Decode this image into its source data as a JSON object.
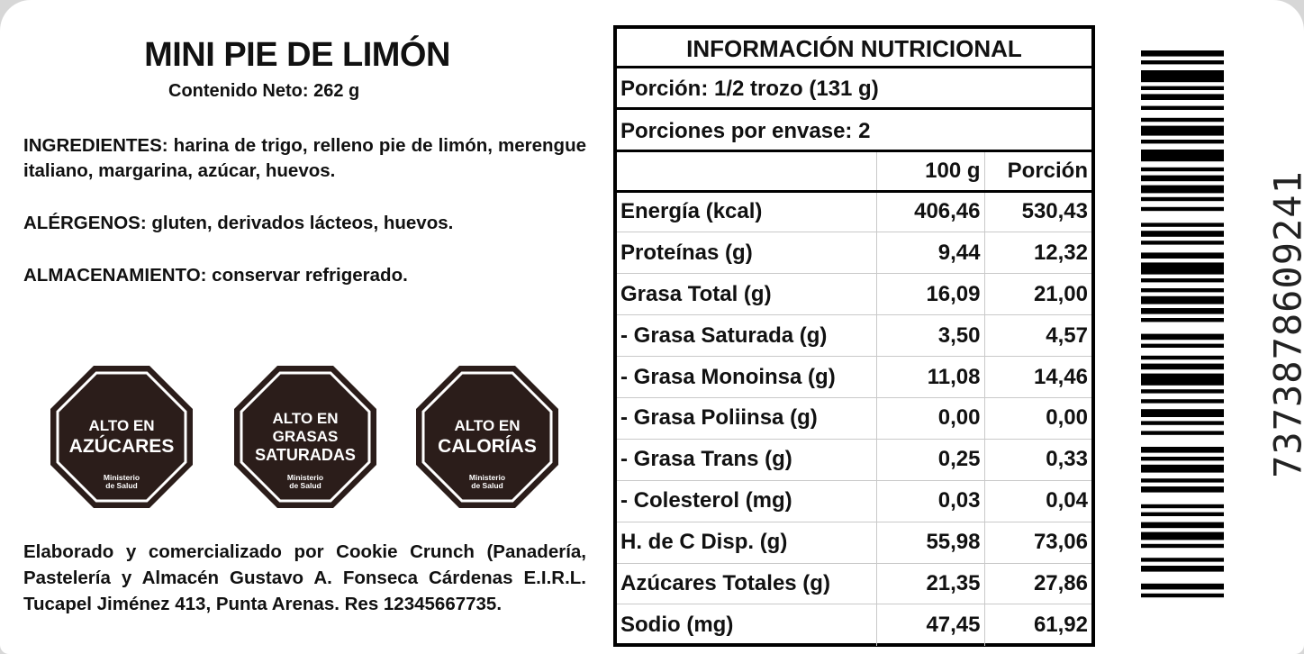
{
  "product": {
    "title": "MINI PIE DE LIMÓN",
    "net_content": "Contenido Neto: 262 g"
  },
  "ingredients": {
    "label": "INGREDIENTES:",
    "text": " harina de trigo, relleno pie de limón, merengue italiano, margarina, azúcar, huevos."
  },
  "allergens": {
    "label": "ALÉRGENOS:",
    "text": " gluten, derivados lácteos, huevos."
  },
  "storage": {
    "label": "ALMACENAMIENTO:",
    "text": " conservar refrigerado."
  },
  "seals": [
    {
      "line1": "ALTO EN",
      "line2": "AZÚCARES",
      "line3": "",
      "ministry1": "Ministerio",
      "ministry2": "de Salud"
    },
    {
      "line1": "ALTO EN",
      "line2": "GRASAS",
      "line3": "SATURADAS",
      "ministry1": "Ministerio",
      "ministry2": "de Salud"
    },
    {
      "line1": "ALTO EN",
      "line2": "CALORÍAS",
      "line3": "",
      "ministry1": "Ministerio",
      "ministry2": "de Salud"
    }
  ],
  "seal_colors": {
    "fill": "#2b1d1a",
    "border": "#ffffff"
  },
  "manufacturer": "Elaborado y comercializado por Cookie Crunch (Panadería, Pastelería y Almacén Gustavo A. Fonseca Cárdenas E.I.R.L. Tucapel Jiménez 413, Punta Arenas. Res 12345667735.",
  "nutrition": {
    "heading": "INFORMACIÓN NUTRICIONAL",
    "serving": "Porción: 1/2 trozo (131 g)",
    "servings_per_pack": "Porciones por envase: 2",
    "col_per100": "100 g",
    "col_portion": "Porción",
    "rows": [
      {
        "name": "Energía (kcal)",
        "per100": "406,46",
        "portion": "530,43"
      },
      {
        "name": "Proteínas (g)",
        "per100": "9,44",
        "portion": "12,32"
      },
      {
        "name": "Grasa Total (g)",
        "per100": "16,09",
        "portion": "21,00"
      },
      {
        "name": "- Grasa Saturada (g)",
        "per100": "3,50",
        "portion": "4,57"
      },
      {
        "name": "- Grasa Monoinsa (g)",
        "per100": "11,08",
        "portion": "14,46"
      },
      {
        "name": "- Grasa Poliinsa (g)",
        "per100": "0,00",
        "portion": "0,00"
      },
      {
        "name": "- Grasa Trans (g)",
        "per100": "0,25",
        "portion": "0,33"
      },
      {
        "name": "- Colesterol (mg)",
        "per100": "0,03",
        "portion": "0,04"
      },
      {
        "name": "H. de C Disp. (g)",
        "per100": "55,98",
        "portion": "73,06"
      },
      {
        "name": "Azúcares Totales (g)",
        "per100": "21,35",
        "portion": "27,86"
      },
      {
        "name": "Sodio (mg)",
        "per100": "47,45",
        "portion": "61,92"
      }
    ]
  },
  "barcode": {
    "digits": "7373878609241"
  }
}
